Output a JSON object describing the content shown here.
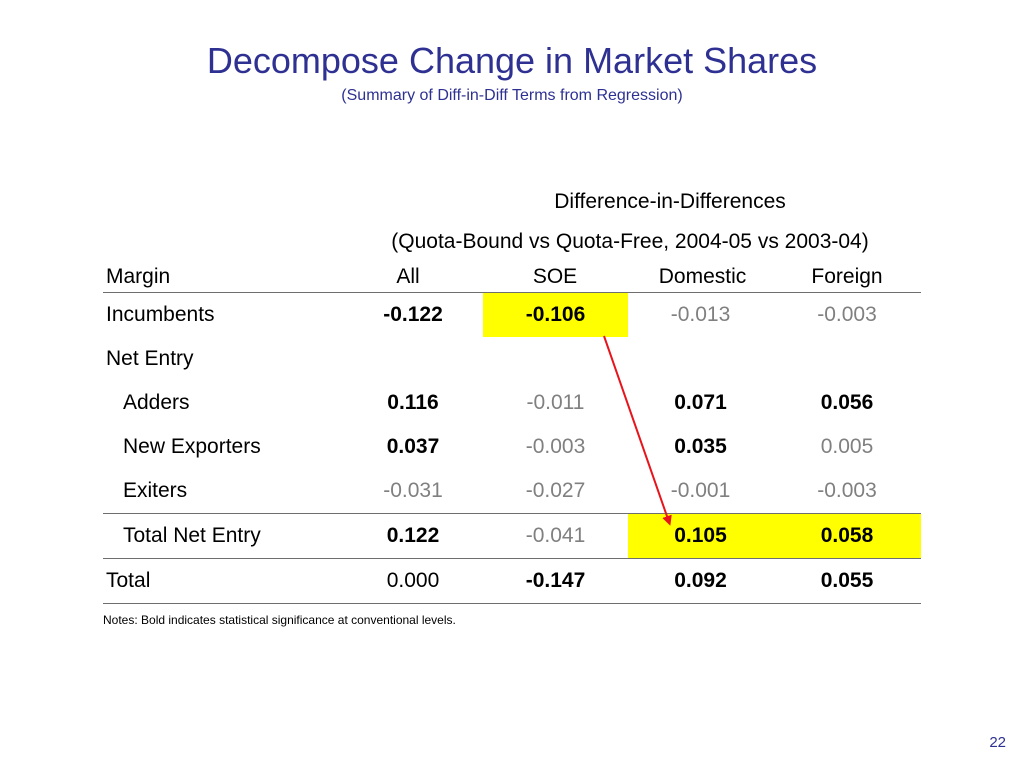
{
  "title": "Decompose Change in Market Shares",
  "subtitle": "(Summary of Diff-in-Diff Terms from Regression)",
  "header": {
    "group_line1": "Difference-in-Differences",
    "group_line2": "(Quota-Bound vs Quota-Free, 2004-05 vs 2003-04)",
    "columns": [
      "Margin",
      "All",
      "SOE",
      "Domestic",
      "Foreign"
    ]
  },
  "rows": [
    {
      "label": "Incumbents",
      "indent": false,
      "cells": [
        {
          "value": "-0.122",
          "style": "bold"
        },
        {
          "value": "-0.106",
          "style": "bold",
          "highlight": true
        },
        {
          "value": "-0.013",
          "style": "gray"
        },
        {
          "value": "-0.003",
          "style": "gray"
        }
      ]
    },
    {
      "label": "Net Entry",
      "indent": false,
      "cells": [
        {
          "value": "",
          "style": "plain"
        },
        {
          "value": "",
          "style": "plain"
        },
        {
          "value": "",
          "style": "plain"
        },
        {
          "value": "",
          "style": "plain"
        }
      ]
    },
    {
      "label": "Adders",
      "indent": true,
      "cells": [
        {
          "value": "0.116",
          "style": "bold"
        },
        {
          "value": "-0.011",
          "style": "gray"
        },
        {
          "value": "0.071",
          "style": "bold"
        },
        {
          "value": "0.056",
          "style": "bold"
        }
      ]
    },
    {
      "label": "New Exporters",
      "indent": true,
      "cells": [
        {
          "value": "0.037",
          "style": "bold"
        },
        {
          "value": "-0.003",
          "style": "gray"
        },
        {
          "value": "0.035",
          "style": "bold"
        },
        {
          "value": "0.005",
          "style": "gray"
        }
      ]
    },
    {
      "label": "Exiters",
      "indent": true,
      "cells": [
        {
          "value": "-0.031",
          "style": "gray"
        },
        {
          "value": "-0.027",
          "style": "gray"
        },
        {
          "value": "-0.001",
          "style": "gray"
        },
        {
          "value": "-0.003",
          "style": "gray"
        }
      ]
    },
    {
      "label": "Total Net Entry",
      "indent": true,
      "cells": [
        {
          "value": "0.122",
          "style": "bold"
        },
        {
          "value": "-0.041",
          "style": "gray"
        },
        {
          "value": "0.105",
          "style": "bold",
          "highlight": true
        },
        {
          "value": "0.058",
          "style": "bold",
          "highlight": true
        }
      ]
    },
    {
      "label": "Total",
      "indent": false,
      "cells": [
        {
          "value": "0.000",
          "style": "plain"
        },
        {
          "value": "-0.147",
          "style": "bold"
        },
        {
          "value": "0.092",
          "style": "bold"
        },
        {
          "value": "0.055",
          "style": "bold"
        }
      ]
    }
  ],
  "notes": "Notes: Bold indicates statistical significance at conventional levels.",
  "page_number": "22",
  "colors": {
    "title": "#2e3192",
    "highlight": "#ffff00",
    "arrow": "#e8141b",
    "insignificant": "#808080"
  }
}
